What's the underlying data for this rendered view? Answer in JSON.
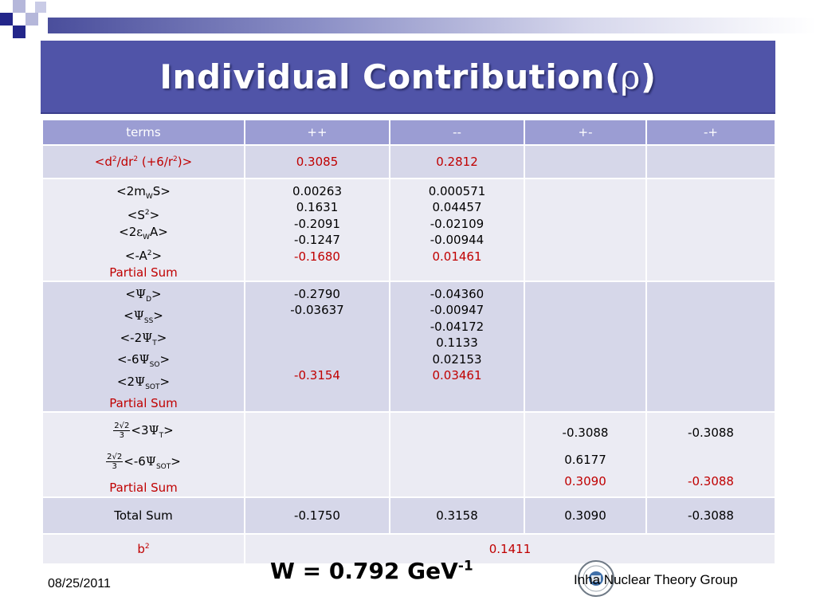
{
  "slide": {
    "title_text": "Individual Contribution(",
    "title_rho": "ρ",
    "title_close": ")"
  },
  "table": {
    "headers": [
      "terms",
      "++",
      "--",
      "+-",
      "-+"
    ],
    "row1": {
      "label_a": "<d",
      "label_sup1": "2",
      "label_b": "/dr",
      "label_sup2": "2",
      "label_c": " (+6/r",
      "label_sup3": "2",
      "label_d": ")>",
      "pp": "0.3085",
      "mm": "0.2812"
    },
    "row2": {
      "l1_a": "<2m",
      "l1_sub": "W",
      "l1_b": "S>",
      "l2_a": "<S",
      "l2_sup": "2",
      "l2_b": ">",
      "l3_a": "<2",
      "l3_eps": "ε",
      "l3_sub": "W",
      "l3_b": "A>",
      "l4_a": "<-A",
      "l4_sup": "2",
      "l4_b": ">",
      "partial": "Partial Sum",
      "pp": [
        "0.00263",
        "0.1631",
        "-0.2091",
        "-0.1247",
        "-0.1680"
      ],
      "mm": [
        "0.000571",
        "0.04457",
        "-0.02109",
        "-0.00944",
        "0.01461"
      ]
    },
    "row3": {
      "l1_a": "<",
      "l1_psi": "Ψ",
      "l1_sub": "D",
      "l1_b": ">",
      "l2_a": "<",
      "l2_psi": "Ψ",
      "l2_sub": "SS",
      "l2_b": ">",
      "l3_a": "<-2",
      "l3_psi": "Ψ",
      "l3_sub": "T",
      "l3_b": ">",
      "l4_a": "<-6",
      "l4_psi": "Ψ",
      "l4_sub": "SO",
      "l4_b": ">",
      "l5_a": "<2",
      "l5_psi": "Ψ",
      "l5_sub": "SOT",
      "l5_b": ">",
      "partial": "Partial Sum",
      "pp": [
        "-0.2790",
        "-0.03637",
        "-0.3154"
      ],
      "mm": [
        "-0.04360",
        "-0.00947",
        "-0.04172",
        "0.1133",
        "0.02153",
        "0.03461"
      ]
    },
    "row4": {
      "frac_num": "2√2",
      "frac_den": "3",
      "l1_a": "<3",
      "l1_psi": "Ψ",
      "l1_sub": "T",
      "l1_b": ">",
      "l2_a": "<-6",
      "l2_psi": "Ψ",
      "l2_sub": "SOT",
      "l2_b": ">",
      "partial": "Partial Sum",
      "pm": [
        "-0.3088",
        "0.6177",
        "0.3090"
      ],
      "mp": [
        "-0.3088",
        "-0.3088"
      ]
    },
    "total": {
      "label": "Total Sum",
      "values": [
        "-0.1750",
        "0.3158",
        "0.3090",
        "-0.3088"
      ]
    },
    "b2": {
      "label_a": "b",
      "label_sup": "2",
      "value": "0.1411"
    }
  },
  "footer": {
    "formula_a": "W = 0.792 GeV",
    "formula_sup": "-1",
    "date": "08/25/2011",
    "group": "Inha Nuclear Theory Group"
  },
  "colors": {
    "title_bar": "#5054a8",
    "header_row": "#9b9dd3",
    "row_shade": "#d6d7e9",
    "row_light": "#ebebf3",
    "accent_red": "#c00000"
  },
  "icons": [
    "inha-university-logo"
  ]
}
